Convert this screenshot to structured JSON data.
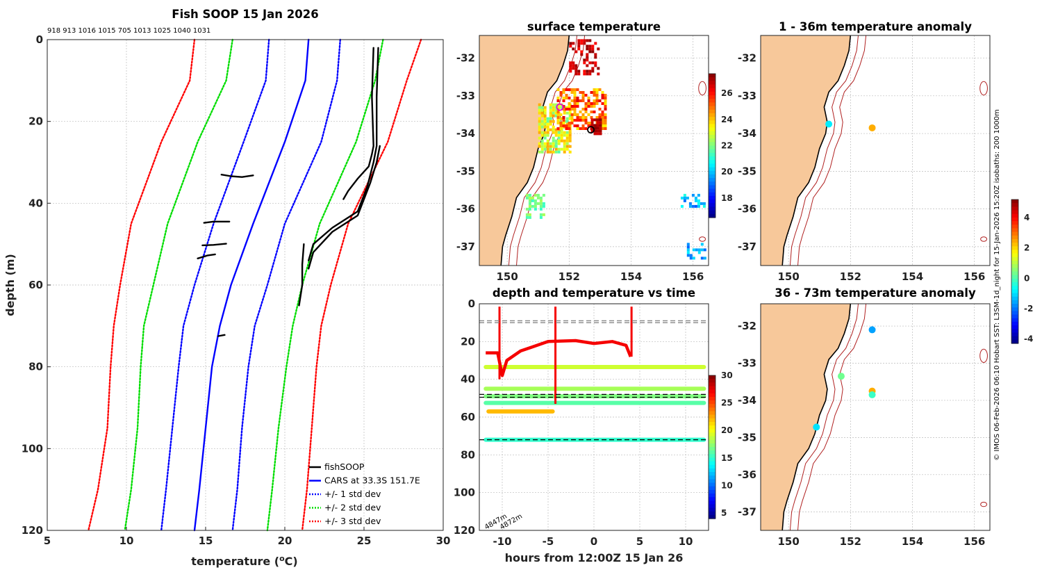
{
  "chart_data": [
    {
      "id": "profile",
      "type": "line",
      "title": "Fish SOOP 15 Jan 2026",
      "xlabel": "temperature (°C)",
      "ylabel": "depth (m)",
      "xlim": [
        5,
        30
      ],
      "ylim": [
        0,
        120
      ],
      "y_reversed": true,
      "xticks": [
        5,
        10,
        15,
        20,
        25,
        30
      ],
      "yticks": [
        0,
        20,
        40,
        60,
        80,
        100,
        120
      ],
      "top_annotation": "918 913 1016 1015 705 1013 1025 1040 1031",
      "legend": [
        "fishSOOP",
        "CARS at 33.3S 151.7E",
        "+/- 1 std dev",
        "+/- 2 std dev",
        "+/- 3 std dev"
      ],
      "series": [
        {
          "name": "CARS mean",
          "color": "#0000ff",
          "style": "solid",
          "points": [
            [
              21.5,
              0
            ],
            [
              21.3,
              10
            ],
            [
              20.0,
              25
            ],
            [
              18.0,
              45
            ],
            [
              16.6,
              60
            ],
            [
              15.9,
              70
            ],
            [
              15.4,
              80
            ],
            [
              15.0,
              95
            ],
            [
              14.6,
              110
            ],
            [
              14.3,
              120
            ]
          ]
        },
        {
          "name": "+1 std",
          "color": "#0000ff",
          "style": "dotted",
          "points": [
            [
              23.5,
              0
            ],
            [
              23.3,
              10
            ],
            [
              22.3,
              25
            ],
            [
              20.0,
              45
            ],
            [
              18.9,
              60
            ],
            [
              18.1,
              70
            ],
            [
              17.7,
              80
            ],
            [
              17.3,
              95
            ],
            [
              17.0,
              110
            ],
            [
              16.7,
              120
            ]
          ]
        },
        {
          "name": "-1 std",
          "color": "#0000ff",
          "style": "dotted",
          "points": [
            [
              19.0,
              0
            ],
            [
              18.8,
              10
            ],
            [
              17.4,
              25
            ],
            [
              15.5,
              45
            ],
            [
              14.3,
              60
            ],
            [
              13.6,
              70
            ],
            [
              13.3,
              80
            ],
            [
              12.9,
              95
            ],
            [
              12.5,
              110
            ],
            [
              12.2,
              120
            ]
          ]
        },
        {
          "name": "+2 std",
          "color": "#00dd00",
          "style": "dotted",
          "points": [
            [
              26.2,
              0
            ],
            [
              25.7,
              10
            ],
            [
              24.5,
              25
            ],
            [
              22.2,
              45
            ],
            [
              21.1,
              60
            ],
            [
              20.5,
              70
            ],
            [
              20.1,
              80
            ],
            [
              19.6,
              95
            ],
            [
              19.2,
              110
            ],
            [
              18.9,
              120
            ]
          ]
        },
        {
          "name": "-2 std",
          "color": "#00dd00",
          "style": "dotted",
          "points": [
            [
              16.7,
              0
            ],
            [
              16.3,
              10
            ],
            [
              14.5,
              25
            ],
            [
              12.6,
              45
            ],
            [
              11.7,
              60
            ],
            [
              11.1,
              70
            ],
            [
              10.9,
              80
            ],
            [
              10.7,
              95
            ],
            [
              10.3,
              110
            ],
            [
              9.9,
              120
            ]
          ]
        },
        {
          "name": "+3 std",
          "color": "#ff0000",
          "style": "dotted",
          "points": [
            [
              28.6,
              0
            ],
            [
              27.7,
              10
            ],
            [
              26.5,
              25
            ],
            [
              24.0,
              45
            ],
            [
              22.9,
              60
            ],
            [
              22.3,
              70
            ],
            [
              22.0,
              80
            ],
            [
              21.7,
              95
            ],
            [
              21.4,
              110
            ],
            [
              21.1,
              120
            ]
          ]
        },
        {
          "name": "-3 std",
          "color": "#ff0000",
          "style": "dotted",
          "points": [
            [
              14.3,
              0
            ],
            [
              14.0,
              10
            ],
            [
              12.2,
              25
            ],
            [
              10.3,
              45
            ],
            [
              9.6,
              60
            ],
            [
              9.2,
              70
            ],
            [
              9.0,
              80
            ],
            [
              8.8,
              95
            ],
            [
              8.2,
              110
            ],
            [
              7.6,
              120
            ]
          ]
        },
        {
          "name": "fishSOOP A",
          "color": "#000000",
          "style": "solid",
          "points": [
            [
              25.6,
              2
            ],
            [
              25.5,
              14
            ],
            [
              25.6,
              26
            ],
            [
              25.5,
              28
            ],
            [
              25.3,
              31
            ],
            [
              24.6,
              34
            ],
            [
              24.0,
              37
            ],
            [
              23.7,
              39
            ]
          ]
        },
        {
          "name": "fishSOOP B",
          "color": "#000000",
          "style": "solid",
          "points": [
            [
              25.9,
              2
            ],
            [
              25.8,
              14
            ],
            [
              25.8,
              26
            ],
            [
              25.6,
              30
            ],
            [
              25.2,
              36
            ],
            [
              24.6,
              42
            ],
            [
              23.0,
              46
            ],
            [
              21.8,
              50
            ],
            [
              21.5,
              54
            ]
          ]
        },
        {
          "name": "fishSOOP C",
          "color": "#000000",
          "style": "solid",
          "points": [
            [
              26.0,
              26
            ],
            [
              25.8,
              30
            ],
            [
              25.4,
              35
            ],
            [
              24.6,
              43
            ],
            [
              23.0,
              47
            ],
            [
              21.8,
              52
            ],
            [
              21.5,
              56
            ]
          ]
        },
        {
          "name": "fishSOOP D",
          "color": "#000000",
          "style": "solid",
          "points": [
            [
              21.2,
              50
            ],
            [
              21.1,
              55
            ],
            [
              21.1,
              60
            ],
            [
              20.9,
              65
            ]
          ]
        },
        {
          "name": "fishSOOP E",
          "color": "#000000",
          "style": "solid",
          "points": [
            [
              16.0,
              33
            ],
            [
              16.6,
              33.4
            ],
            [
              17.3,
              33.6
            ],
            [
              18.0,
              33.2
            ]
          ]
        },
        {
          "name": "fishSOOP F",
          "color": "#000000",
          "style": "solid",
          "points": [
            [
              14.9,
              44.8
            ],
            [
              15.5,
              44.5
            ],
            [
              16.5,
              44.5
            ]
          ]
        },
        {
          "name": "fishSOOP G",
          "color": "#000000",
          "style": "solid",
          "points": [
            [
              14.8,
              50.3
            ],
            [
              15.5,
              50.2
            ],
            [
              16.3,
              49.9
            ]
          ]
        },
        {
          "name": "fishSOOP H",
          "color": "#000000",
          "style": "solid",
          "points": [
            [
              14.5,
              53.5
            ],
            [
              15.1,
              52.8
            ],
            [
              15.6,
              52.5
            ]
          ]
        },
        {
          "name": "fishSOOP I",
          "color": "#000000",
          "style": "solid",
          "points": [
            [
              15.8,
              72.5
            ],
            [
              16.2,
              72.2
            ]
          ]
        }
      ]
    },
    {
      "id": "surface",
      "type": "heatmap",
      "title": "surface temperature",
      "xlim": [
        149.1,
        156.5
      ],
      "ylim": [
        -37.5,
        -31.4
      ],
      "xticks": [
        150,
        152,
        154,
        156
      ],
      "yticks": [
        -32,
        -33,
        -34,
        -35,
        -36,
        -37
      ],
      "colorbar": {
        "min": 16.5,
        "max": 27.5,
        "ticks": [
          18,
          20,
          22,
          24,
          26
        ]
      },
      "markers": [
        {
          "lon": 151.7,
          "lat": -33.3,
          "color": "#dd00dd"
        },
        {
          "lon": 152.7,
          "lat": -33.9,
          "color": "#000000"
        }
      ]
    },
    {
      "id": "timeseries",
      "type": "scatter",
      "title": "depth and temperature vs time",
      "xlabel": "hours from 12:00Z 15 Jan 26",
      "xlim": [
        -12.5,
        12.5
      ],
      "ylim": [
        0,
        120
      ],
      "y_reversed": true,
      "xticks": [
        -10,
        -5,
        0,
        5,
        10
      ],
      "yticks": [
        0,
        20,
        40,
        60,
        80,
        100,
        120
      ],
      "colorbar": {
        "min": 4,
        "max": 30,
        "ticks": [
          5,
          10,
          15,
          20,
          25,
          30
        ]
      },
      "annotations": [
        "4847m",
        "4872m"
      ],
      "series": [
        {
          "name": "near-surface trace",
          "depth_avg": 20,
          "temp": 27
        },
        {
          "name": "34m trace",
          "depth": 33.5,
          "temp": 19
        },
        {
          "name": "45m trace",
          "depth": 45,
          "temp": 18
        },
        {
          "name": "49m trace",
          "depth": 49,
          "temp": 17
        },
        {
          "name": "53m trace",
          "depth": 52.5,
          "temp": 16
        },
        {
          "name": "72m trace",
          "depth": 72,
          "temp": 15
        },
        {
          "name": "55-65m trace",
          "depth": 57,
          "temp": 22
        }
      ],
      "reference_lines": [
        9,
        10,
        48,
        49.5,
        72
      ]
    },
    {
      "id": "anomaly_shallow",
      "type": "scatter",
      "title": "1 - 36m temperature anomaly",
      "xlim": [
        149.1,
        156.5
      ],
      "ylim": [
        -37.5,
        -31.4
      ],
      "xticks": [
        150,
        152,
        154,
        156
      ],
      "yticks": [
        -32,
        -33,
        -34,
        -35,
        -36,
        -37
      ],
      "points": [
        {
          "lon": 151.3,
          "lat": -33.75,
          "anomaly": -0.9
        },
        {
          "lon": 152.7,
          "lat": -33.85,
          "anomaly": 2.4
        }
      ]
    },
    {
      "id": "anomaly_deep",
      "type": "scatter",
      "title": "36 - 73m temperature anomaly",
      "xlim": [
        149.1,
        156.5
      ],
      "ylim": [
        -37.5,
        -31.4
      ],
      "xticks": [
        150,
        152,
        154,
        156
      ],
      "yticks": [
        -32,
        -33,
        -34,
        -35,
        -36,
        -37
      ],
      "points": [
        {
          "lon": 152.7,
          "lat": -32.1,
          "anomaly": -1.6
        },
        {
          "lon": 151.7,
          "lat": -33.35,
          "anomaly": 0.3
        },
        {
          "lon": 152.7,
          "lat": -33.75,
          "anomaly": 2.4
        },
        {
          "lon": 152.7,
          "lat": -33.85,
          "anomaly": -0.2
        },
        {
          "lon": 150.9,
          "lat": -34.72,
          "anomaly": -1.0
        }
      ],
      "colorbar": {
        "min": -4.3,
        "max": 5.2,
        "ticks": [
          -4,
          -2,
          0,
          2,
          4
        ]
      }
    }
  ],
  "credit": "© IMOS 06-Feb-2026 06:10 Hobart SST: L3SM-1d_night for 15-Jan-2026 15:20Z isobaths: 200  1000m",
  "colors": {
    "land": "#f7c89a",
    "isobath": "#b02020"
  }
}
